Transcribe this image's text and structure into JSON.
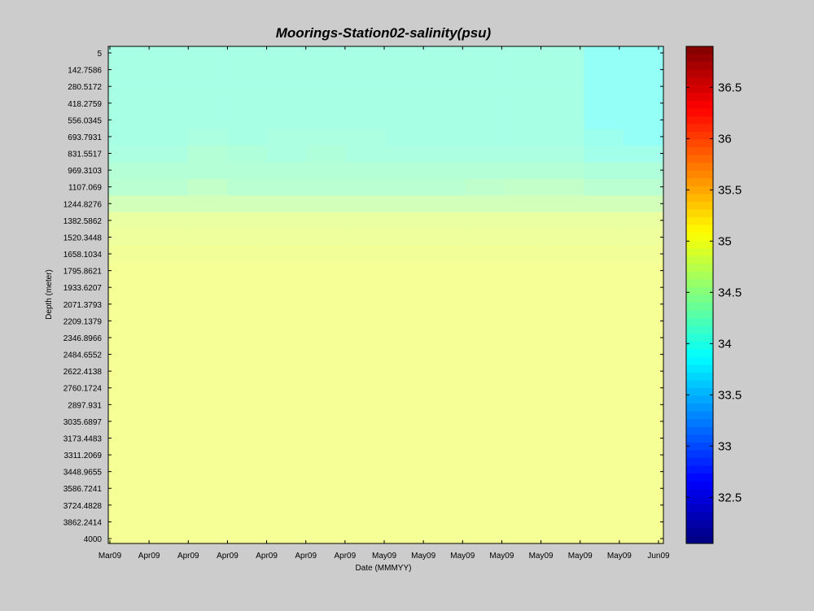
{
  "chart_data": {
    "type": "heatmap",
    "title": "Moorings-Station02-salinity(psu)",
    "xlabel": "Date (MMMYY)",
    "ylabel": "Depth (meter)",
    "x_tick_labels": [
      "Mar09",
      "Apr09",
      "Apr09",
      "Apr09",
      "Apr09",
      "Apr09",
      "Apr09",
      "May09",
      "May09",
      "May09",
      "May09",
      "May09",
      "May09",
      "May09",
      "Jun09"
    ],
    "y_tick_labels": [
      "5",
      "142.7586",
      "280.5172",
      "418.2759",
      "556.0345",
      "693.7931",
      "831.5517",
      "969.3103",
      "1107.069",
      "1244.8276",
      "1382.5862",
      "1520.3448",
      "1658.1034",
      "1795.8621",
      "1933.6207",
      "2071.3793",
      "2209.1379",
      "2346.8966",
      "2484.6552",
      "2622.4138",
      "2760.1724",
      "2897.931",
      "3035.6897",
      "3173.4483",
      "3311.2069",
      "3448.9655",
      "3586.7241",
      "3724.4828",
      "3862.2414",
      "4000"
    ],
    "colorbar": {
      "min": 32.05,
      "max": 36.9,
      "ticks": [
        32.5,
        33,
        33.5,
        34,
        34.5,
        35,
        35.5,
        36,
        36.5
      ],
      "tick_labels": [
        "32.5",
        "33",
        "33.5",
        "34",
        "34.5",
        "35",
        "35.5",
        "36",
        "36.5"
      ],
      "colormap": "jet"
    },
    "depth_rows": [
      "5",
      "142.7586",
      "280.5172",
      "418.2759",
      "556.0345",
      "693.7931",
      "831.5517",
      "969.3103",
      "1107.069",
      "1244.8276",
      "1382.5862",
      "1520.3448",
      "1658.1034",
      "1795.8621",
      "1933.6207",
      "2071.3793",
      "2209.1379",
      "2346.8966",
      "2484.6552",
      "2622.4138",
      "2760.1724",
      "2897.931",
      "3035.6897",
      "3173.4483",
      "3311.2069",
      "3448.9655",
      "3586.7241",
      "3724.4828",
      "3862.2414",
      "4000"
    ],
    "date_columns": 14,
    "salinity_by_row": [
      {
        "depth": "5",
        "values": [
          34.15,
          34.15,
          34.15,
          34.15,
          34.15,
          34.15,
          34.15,
          34.15,
          34.15,
          34.15,
          34.15,
          34.15,
          33.95,
          33.95
        ]
      },
      {
        "depth": "142.7586",
        "values": [
          34.15,
          34.15,
          34.15,
          34.15,
          34.15,
          34.15,
          34.15,
          34.15,
          34.15,
          34.15,
          34.15,
          34.15,
          33.95,
          33.95
        ]
      },
      {
        "depth": "280.5172",
        "values": [
          34.15,
          34.15,
          34.15,
          34.15,
          34.15,
          34.15,
          34.15,
          34.15,
          34.15,
          34.15,
          34.15,
          34.15,
          33.95,
          33.95
        ]
      },
      {
        "depth": "418.2759",
        "values": [
          34.15,
          34.15,
          34.15,
          34.15,
          34.15,
          34.15,
          34.15,
          34.15,
          34.15,
          34.15,
          34.15,
          34.15,
          33.95,
          33.95
        ]
      },
      {
        "depth": "556.0345",
        "values": [
          34.15,
          34.15,
          34.15,
          34.15,
          34.15,
          34.15,
          34.15,
          34.15,
          34.15,
          34.15,
          34.15,
          34.15,
          33.95,
          33.95
        ]
      },
      {
        "depth": "693.7931",
        "values": [
          34.15,
          34.15,
          34.2,
          34.15,
          34.2,
          34.2,
          34.2,
          34.15,
          34.15,
          34.15,
          34.15,
          34.15,
          34.05,
          33.95
        ]
      },
      {
        "depth": "831.5517",
        "values": [
          34.2,
          34.2,
          34.3,
          34.25,
          34.2,
          34.25,
          34.2,
          34.2,
          34.2,
          34.2,
          34.2,
          34.2,
          34.1,
          34.1
        ]
      },
      {
        "depth": "969.3103",
        "values": [
          34.3,
          34.3,
          34.3,
          34.3,
          34.3,
          34.3,
          34.3,
          34.3,
          34.3,
          34.3,
          34.3,
          34.3,
          34.25,
          34.25
        ]
      },
      {
        "depth": "1107.069",
        "values": [
          34.35,
          34.35,
          34.45,
          34.35,
          34.35,
          34.35,
          34.35,
          34.35,
          34.35,
          34.4,
          34.45,
          34.45,
          34.35,
          34.35
        ]
      },
      {
        "depth": "1244.8276",
        "values": [
          34.6,
          34.6,
          34.6,
          34.6,
          34.6,
          34.6,
          34.6,
          34.6,
          34.6,
          34.6,
          34.6,
          34.6,
          34.6,
          34.6
        ]
      },
      {
        "depth": "1382.5862",
        "values": [
          34.85,
          34.85,
          34.85,
          34.85,
          34.85,
          34.85,
          34.85,
          34.85,
          34.85,
          34.85,
          34.85,
          34.85,
          34.85,
          34.85
        ]
      },
      {
        "depth": "1520.3448",
        "values": [
          34.9,
          34.9,
          34.9,
          34.9,
          34.9,
          34.9,
          34.9,
          34.9,
          34.9,
          34.9,
          34.9,
          34.9,
          34.9,
          34.9
        ]
      },
      {
        "depth": "1658.1034",
        "values": [
          34.95,
          34.95,
          34.95,
          34.95,
          34.95,
          34.95,
          34.95,
          34.95,
          34.95,
          34.95,
          34.95,
          34.95,
          34.95,
          34.95
        ]
      },
      {
        "depth": "1795.8621",
        "values": [
          34.98,
          34.98,
          34.98,
          34.98,
          34.98,
          34.98,
          34.98,
          34.98,
          34.98,
          34.98,
          34.98,
          34.98,
          34.98,
          34.98
        ]
      },
      {
        "depth": "1933.6207",
        "values": [
          34.98,
          34.98,
          34.98,
          34.98,
          34.98,
          34.98,
          34.98,
          34.98,
          34.98,
          34.98,
          34.98,
          34.98,
          34.98,
          34.98
        ]
      },
      {
        "depth": "2071.3793",
        "values": [
          34.98,
          34.98,
          34.98,
          34.98,
          34.98,
          34.98,
          34.98,
          34.98,
          34.98,
          34.98,
          34.98,
          34.98,
          34.98,
          34.98
        ]
      },
      {
        "depth": "2209.1379",
        "values": [
          34.98,
          34.98,
          34.98,
          34.98,
          34.98,
          34.98,
          34.98,
          34.98,
          34.98,
          34.98,
          34.98,
          34.98,
          34.98,
          34.98
        ]
      },
      {
        "depth": "2346.8966",
        "values": [
          34.98,
          34.98,
          34.98,
          34.98,
          34.98,
          34.98,
          34.98,
          34.98,
          34.98,
          34.98,
          34.98,
          34.98,
          34.98,
          34.98
        ]
      },
      {
        "depth": "2484.6552",
        "values": [
          34.98,
          34.98,
          34.98,
          34.98,
          34.98,
          34.98,
          34.98,
          34.98,
          34.98,
          34.98,
          34.98,
          34.98,
          34.98,
          34.98
        ]
      },
      {
        "depth": "2622.4138",
        "values": [
          34.98,
          34.98,
          34.98,
          34.98,
          34.98,
          34.98,
          34.98,
          34.98,
          34.98,
          34.98,
          34.98,
          34.98,
          34.98,
          34.98
        ]
      },
      {
        "depth": "2760.1724",
        "values": [
          34.98,
          34.98,
          34.98,
          34.98,
          34.98,
          34.98,
          34.98,
          34.98,
          34.98,
          34.98,
          34.98,
          34.98,
          34.98,
          34.98
        ]
      },
      {
        "depth": "2897.931",
        "values": [
          34.98,
          34.98,
          34.98,
          34.98,
          34.98,
          34.98,
          34.98,
          34.98,
          34.98,
          34.98,
          34.98,
          34.98,
          34.98,
          34.98
        ]
      },
      {
        "depth": "3035.6897",
        "values": [
          34.98,
          34.98,
          34.98,
          34.98,
          34.98,
          34.98,
          34.98,
          34.98,
          34.98,
          34.98,
          34.98,
          34.98,
          34.98,
          34.98
        ]
      },
      {
        "depth": "3173.4483",
        "values": [
          34.98,
          34.98,
          34.98,
          34.98,
          34.98,
          34.98,
          34.98,
          34.98,
          34.98,
          34.98,
          34.98,
          34.98,
          34.98,
          34.98
        ]
      },
      {
        "depth": "3311.2069",
        "values": [
          34.98,
          34.98,
          34.98,
          34.98,
          34.98,
          34.98,
          34.98,
          34.98,
          34.98,
          34.98,
          34.98,
          34.98,
          34.98,
          34.98
        ]
      },
      {
        "depth": "3448.9655",
        "values": [
          34.98,
          34.98,
          34.98,
          34.98,
          34.98,
          34.98,
          34.98,
          34.98,
          34.98,
          34.98,
          34.98,
          34.98,
          34.98,
          34.98
        ]
      },
      {
        "depth": "3586.7241",
        "values": [
          34.98,
          34.98,
          34.98,
          34.98,
          34.98,
          34.98,
          34.98,
          34.98,
          34.98,
          34.98,
          34.98,
          34.98,
          34.98,
          34.98
        ]
      },
      {
        "depth": "3724.4828",
        "values": [
          34.98,
          34.98,
          34.98,
          34.98,
          34.98,
          34.98,
          34.98,
          34.98,
          34.98,
          34.98,
          34.98,
          34.98,
          34.98,
          34.98
        ]
      },
      {
        "depth": "3862.2414",
        "values": [
          34.98,
          34.98,
          34.98,
          34.98,
          34.98,
          34.98,
          34.98,
          34.98,
          34.98,
          34.98,
          34.98,
          34.98,
          34.98,
          34.98
        ]
      },
      {
        "depth": "4000",
        "values": [
          34.98,
          34.98,
          34.98,
          34.98,
          34.98,
          34.98,
          34.98,
          34.98,
          34.98,
          34.98,
          34.98,
          34.98,
          34.98,
          34.98
        ]
      }
    ]
  }
}
